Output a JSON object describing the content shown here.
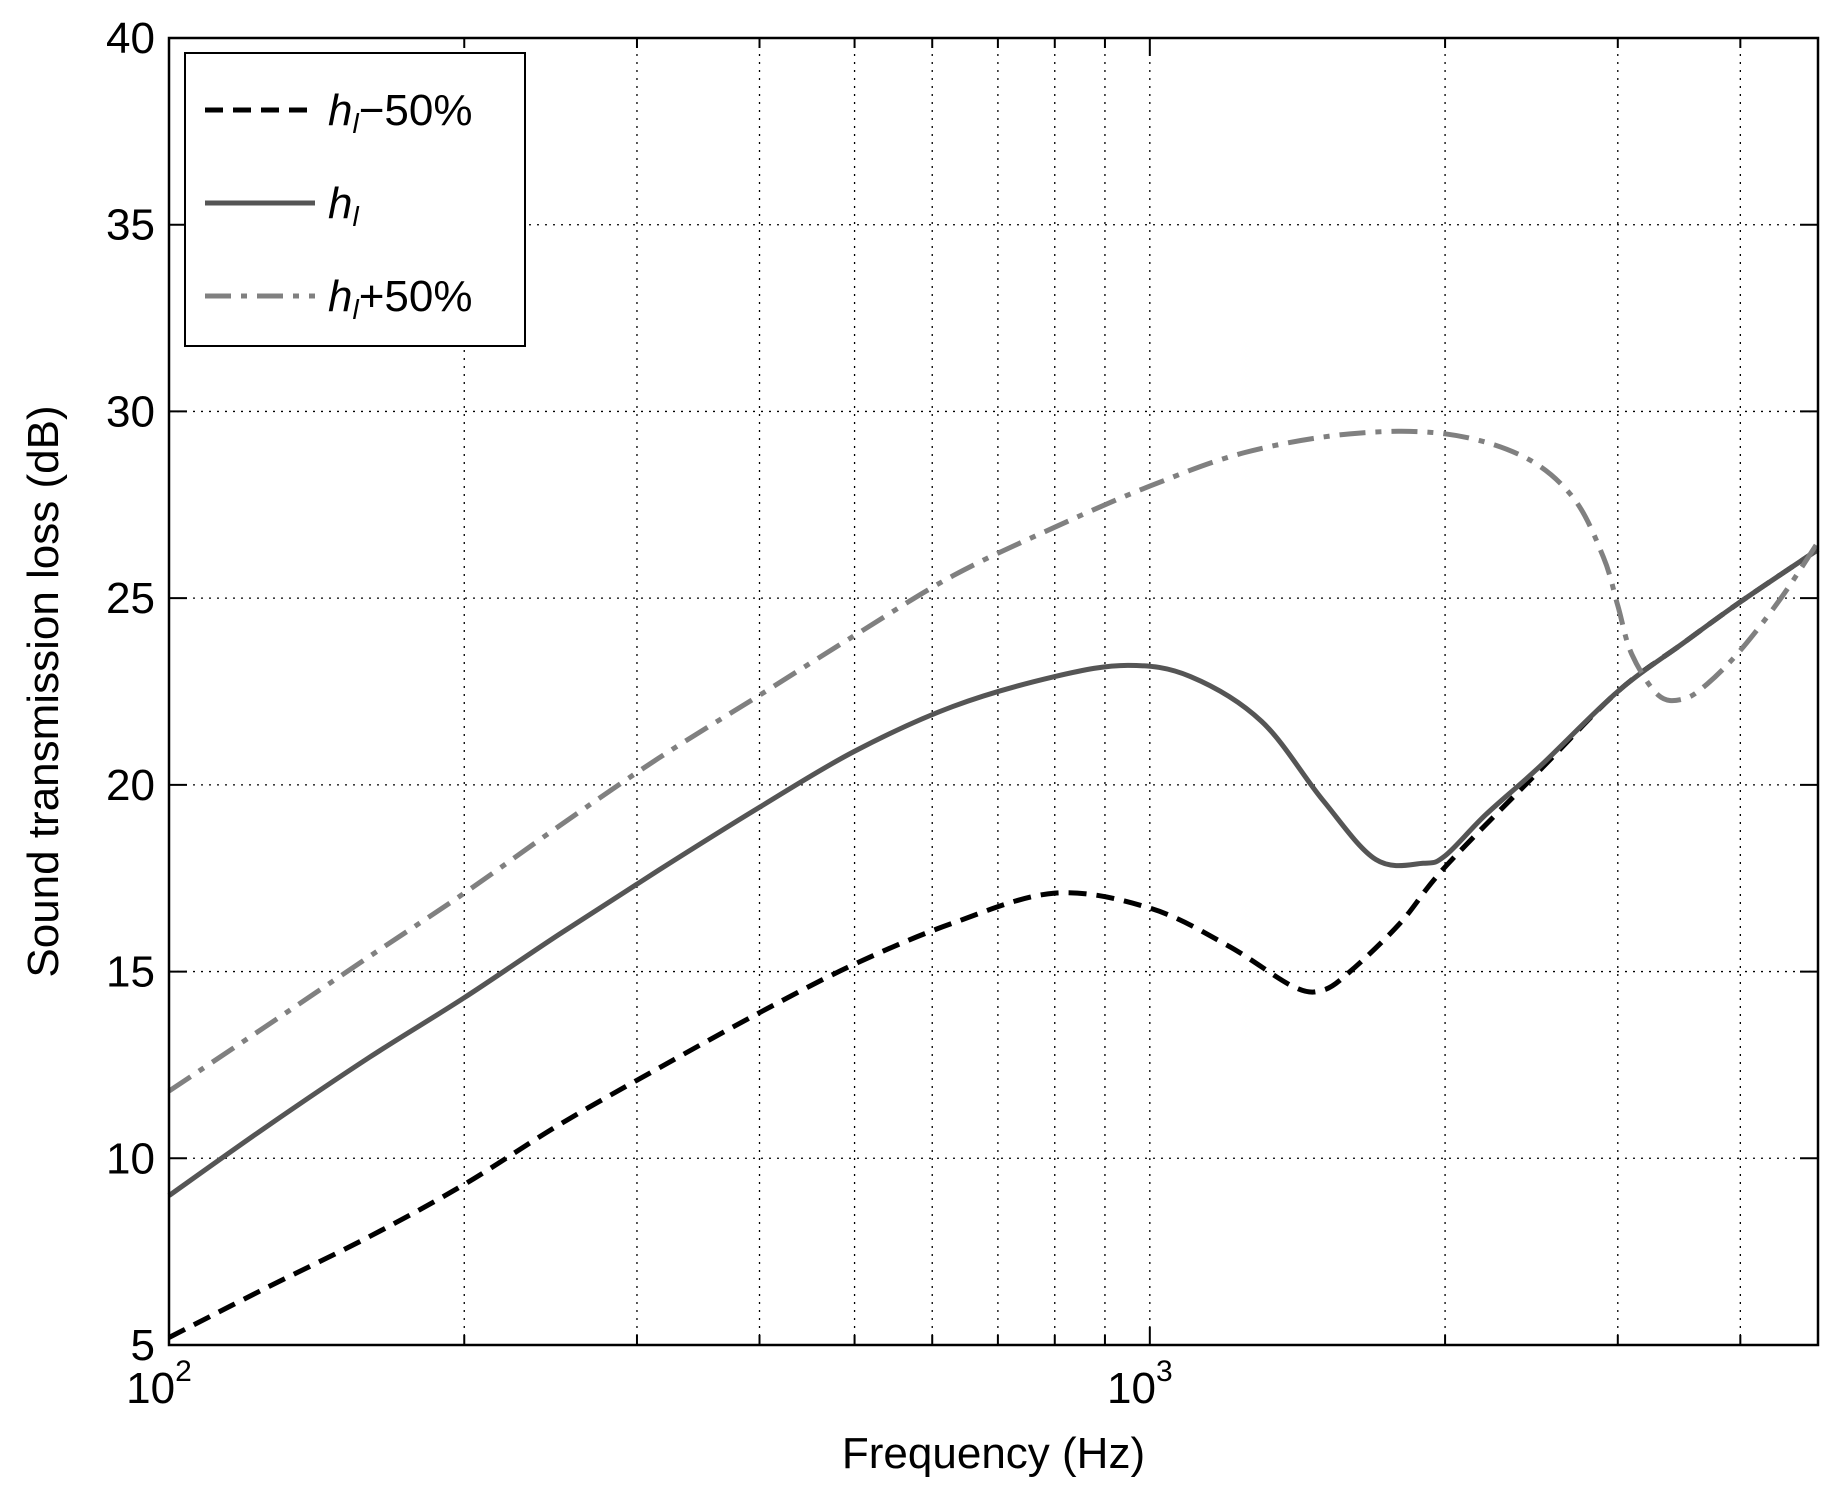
{
  "chart_data": {
    "type": "line",
    "title": "",
    "xlabel": "Frequency (Hz)",
    "ylabel": "Sound transmission loss (dB)",
    "xscale": "log",
    "xlim": [
      100,
      4800
    ],
    "ylim": [
      5,
      40
    ],
    "grid": true,
    "legend_position": "top-left",
    "x_major_ticks": [
      {
        "value": 100,
        "base": "10",
        "exp": "2"
      },
      {
        "value": 1000,
        "base": "10",
        "exp": "3"
      }
    ],
    "y_ticks": [
      {
        "value": 5,
        "label": "5"
      },
      {
        "value": 10,
        "label": "10"
      },
      {
        "value": 15,
        "label": "15"
      },
      {
        "value": 20,
        "label": "20"
      },
      {
        "value": 25,
        "label": "25"
      },
      {
        "value": 30,
        "label": "30"
      },
      {
        "value": 35,
        "label": "35"
      },
      {
        "value": 40,
        "label": "40"
      }
    ],
    "series": [
      {
        "name": "h_l−50%",
        "legend_main": "h",
        "legend_sub": "l",
        "legend_suffix": "−50%",
        "color": "#000000",
        "style": "dashed",
        "x": [
          100,
          125,
          160,
          200,
          250,
          315,
          400,
          500,
          630,
          800,
          1000,
          1200,
          1400,
          1500,
          1600,
          1800,
          2000,
          2500,
          3000,
          3500,
          4000,
          4800
        ],
        "y": [
          5.2,
          6.5,
          7.9,
          9.3,
          10.9,
          12.4,
          13.9,
          15.2,
          16.3,
          17.1,
          16.7,
          15.7,
          14.6,
          14.5,
          15.0,
          16.3,
          17.8,
          20.4,
          22.5,
          23.8,
          24.9,
          26.3
        ]
      },
      {
        "name": "h_l",
        "legend_main": "h",
        "legend_sub": "l",
        "legend_suffix": "",
        "color": "#555555",
        "style": "solid",
        "x": [
          100,
          125,
          160,
          200,
          250,
          315,
          400,
          500,
          630,
          800,
          950,
          1100,
          1300,
          1500,
          1700,
          1900,
          2000,
          2200,
          2500,
          3000,
          3500,
          4000,
          4800
        ],
        "y": [
          9.0,
          10.8,
          12.7,
          14.3,
          16.0,
          17.7,
          19.4,
          20.9,
          22.1,
          22.9,
          23.2,
          22.9,
          21.7,
          19.6,
          18.0,
          17.9,
          18.1,
          19.2,
          20.5,
          22.5,
          23.8,
          24.9,
          26.3
        ]
      },
      {
        "name": "h_l+50%",
        "legend_main": "h",
        "legend_sub": "l",
        "legend_suffix": "+50%",
        "color": "#808080",
        "style": "dashdot",
        "x": [
          100,
          125,
          160,
          200,
          250,
          315,
          400,
          500,
          630,
          800,
          1000,
          1250,
          1600,
          2000,
          2400,
          2700,
          2900,
          3000,
          3100,
          3300,
          3500,
          3700,
          4000,
          4400,
          4800
        ],
        "y": [
          11.8,
          13.5,
          15.4,
          17.1,
          18.9,
          20.7,
          22.4,
          24.0,
          25.6,
          26.9,
          28.0,
          28.9,
          29.4,
          29.4,
          28.8,
          27.7,
          26.1,
          24.8,
          23.5,
          22.4,
          22.3,
          22.7,
          23.6,
          25.0,
          26.5
        ]
      }
    ]
  }
}
